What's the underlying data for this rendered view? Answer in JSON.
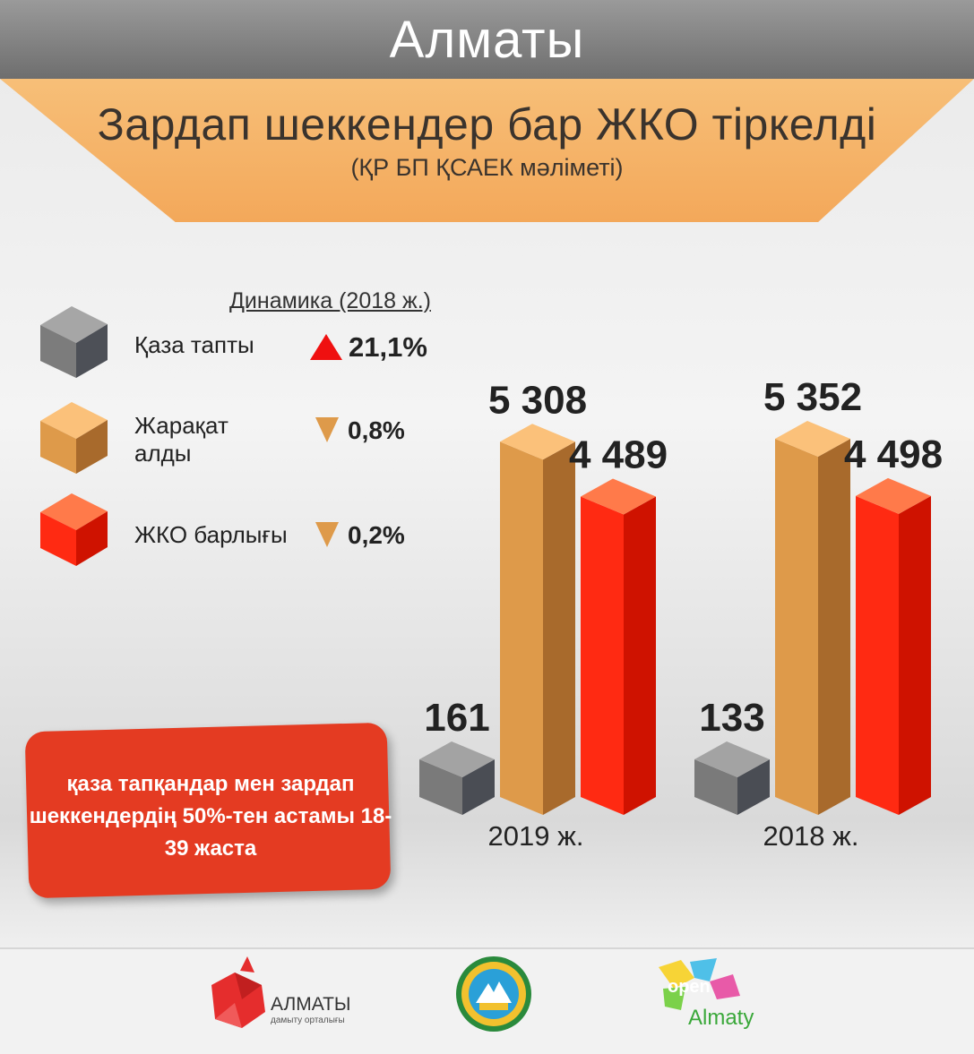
{
  "header": {
    "city": "Алматы",
    "title": "Зардап шеккендер бар ЖКО тіркелді",
    "subtitle": "(ҚР БП ҚСАЕК мәліметі)"
  },
  "legend": {
    "dynamics_title": "Динамика (2018 ж.)",
    "items": [
      {
        "label": "Қаза тапты",
        "change": "21,1%",
        "direction": "up",
        "color": "#75787d"
      },
      {
        "label": "Жарақат алды",
        "change": "0,8%",
        "direction": "down",
        "color": "#d99a50"
      },
      {
        "label": "ЖКО барлығы",
        "change": "0,2%",
        "direction": "down",
        "color": "#ff2a12"
      }
    ]
  },
  "callout": "қаза тапқандар мен зардап шеккендердің 50%-тен астамы 18-39 жаста",
  "chart_data": {
    "type": "bar",
    "categories": [
      "2019 ж.",
      "2018 ж."
    ],
    "series": [
      {
        "name": "Қаза тапты",
        "values": [
          161,
          133
        ],
        "labels": [
          "161",
          "133"
        ],
        "color": "#75787d"
      },
      {
        "name": "Жарақат алды",
        "values": [
          5308,
          5352
        ],
        "labels": [
          "5 308",
          "5 352"
        ],
        "color": "#d99a50"
      },
      {
        "name": "ЖКО барлығы",
        "values": [
          4489,
          4498
        ],
        "labels": [
          "4 489",
          "4 498"
        ],
        "color": "#ff2a12"
      }
    ]
  },
  "footer": {
    "logo1_name": "АЛМАТЫ",
    "logo1_sub": "дамыту орталығы",
    "logo3_top": "open",
    "logo3_bottom": "Almaty"
  }
}
